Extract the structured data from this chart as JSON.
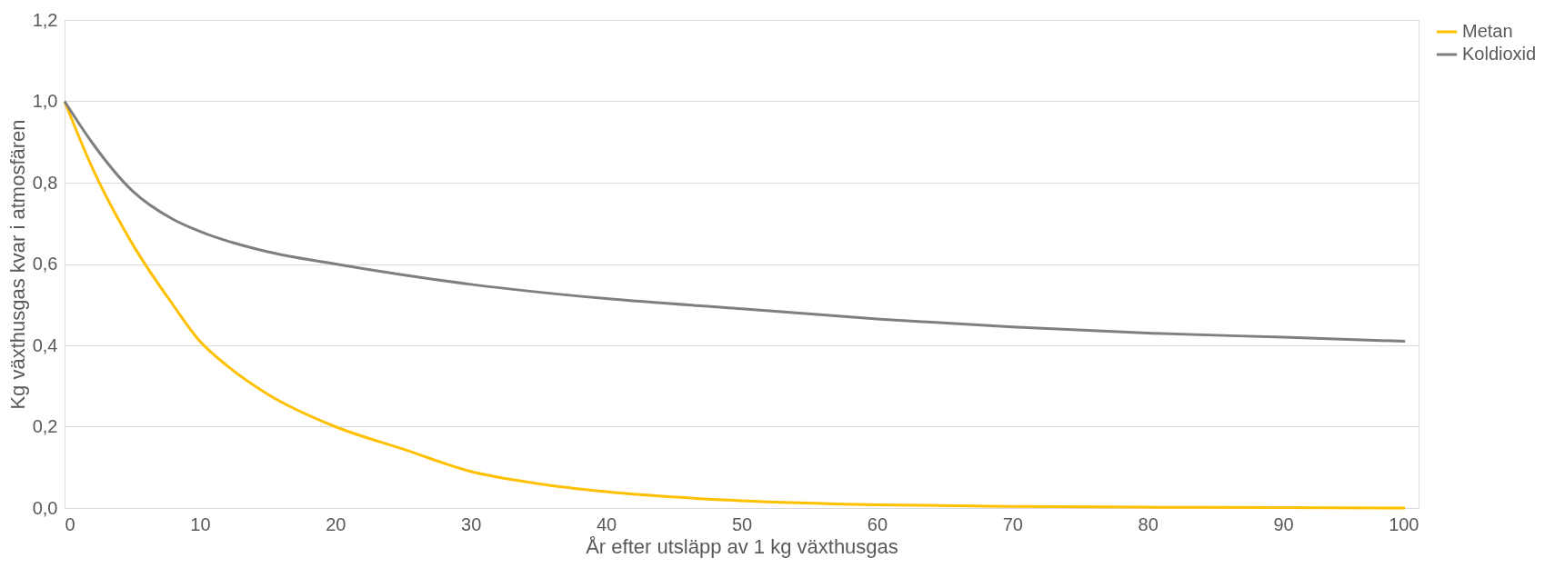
{
  "chart_data": {
    "type": "line",
    "xlabel": "År efter utsläpp av 1 kg växthusgas",
    "ylabel": "Kg växthusgas kvar i atmosfären",
    "xlim": [
      0,
      100
    ],
    "xticks": [
      0,
      10,
      20,
      30,
      40,
      50,
      60,
      70,
      80,
      90,
      100
    ],
    "ylim": [
      0,
      1.2
    ],
    "yticks": [
      {
        "value": 0,
        "label": "0,0"
      },
      {
        "value": 0.2,
        "label": "0,2"
      },
      {
        "value": 0.4,
        "label": "0,4"
      },
      {
        "value": 0.6,
        "label": "0,6"
      },
      {
        "value": 0.8,
        "label": "0,8"
      },
      {
        "value": 1.0,
        "label": "1,0"
      },
      {
        "value": 1.2,
        "label": "1,2"
      }
    ],
    "grid": "y",
    "legend": "right",
    "marker": "none",
    "line_style": "solid",
    "series": [
      {
        "name": "Metan",
        "color": "#ffc000",
        "x": [
          0,
          2,
          5,
          8,
          10,
          12,
          15,
          20,
          25,
          30,
          35,
          40,
          50,
          60,
          70,
          80,
          90,
          99
        ],
        "values": [
          1,
          0.84,
          0.65,
          0.5,
          0.41,
          0.35,
          0.28,
          0.2,
          0.145,
          0.09,
          0.06,
          0.04,
          0.018,
          0.008,
          0.004,
          0.002,
          0.001,
          0
        ]
      },
      {
        "name": "Koldioxid",
        "color": "#7f7f7f",
        "x": [
          0,
          2,
          5,
          8,
          10,
          15,
          20,
          30,
          40,
          50,
          60,
          70,
          80,
          90,
          99
        ],
        "values": [
          1,
          0.9,
          0.78,
          0.71,
          0.68,
          0.63,
          0.6,
          0.55,
          0.515,
          0.49,
          0.465,
          0.445,
          0.43,
          0.42,
          0.41
        ]
      }
    ]
  }
}
